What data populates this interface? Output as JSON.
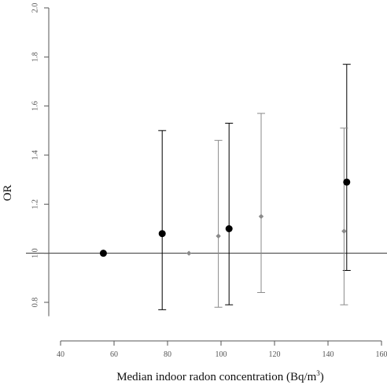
{
  "chart_data": {
    "type": "scatter",
    "title": "",
    "xlabel": "Median indoor radon concentration (Bq/m",
    "xlabel_superscript": "3",
    "xlabel_suffix": ")",
    "ylabel": "OR",
    "xlim": [
      40,
      160
    ],
    "ylim": [
      0.75,
      2.0
    ],
    "x_ticks": [
      40,
      60,
      80,
      100,
      120,
      140,
      160
    ],
    "x_tick_labels": [
      "40",
      "60",
      "80",
      "100",
      "120",
      "140",
      "160"
    ],
    "y_ticks": [
      0.8,
      1.0,
      1.2,
      1.4,
      1.6,
      1.8,
      2.0
    ],
    "y_tick_labels": [
      "0.8",
      "1.0",
      "1.2",
      "1.4",
      "1.6",
      "1.8",
      "2.0"
    ],
    "reference_line": 1.0,
    "grid": false,
    "legend": "none",
    "series": [
      {
        "color": "#000000",
        "marker": "circle",
        "points": [
          {
            "x": 56,
            "y": 1.0,
            "lower": null,
            "upper": null
          },
          {
            "x": 78,
            "y": 1.08,
            "lower": 0.77,
            "upper": 1.5
          },
          {
            "x": 103,
            "y": 1.1,
            "lower": 0.79,
            "upper": 1.53
          },
          {
            "x": 147,
            "y": 1.29,
            "lower": 0.93,
            "upper": 1.77
          }
        ]
      },
      {
        "color": "#8a8a8a",
        "marker": "diamond",
        "points": [
          {
            "x": 88,
            "y": 1.0,
            "lower": null,
            "upper": null
          },
          {
            "x": 99,
            "y": 1.07,
            "lower": 0.78,
            "upper": 1.46
          },
          {
            "x": 115,
            "y": 1.15,
            "lower": 0.84,
            "upper": 1.57
          },
          {
            "x": 146,
            "y": 1.09,
            "lower": 0.79,
            "upper": 1.51
          }
        ]
      }
    ]
  }
}
